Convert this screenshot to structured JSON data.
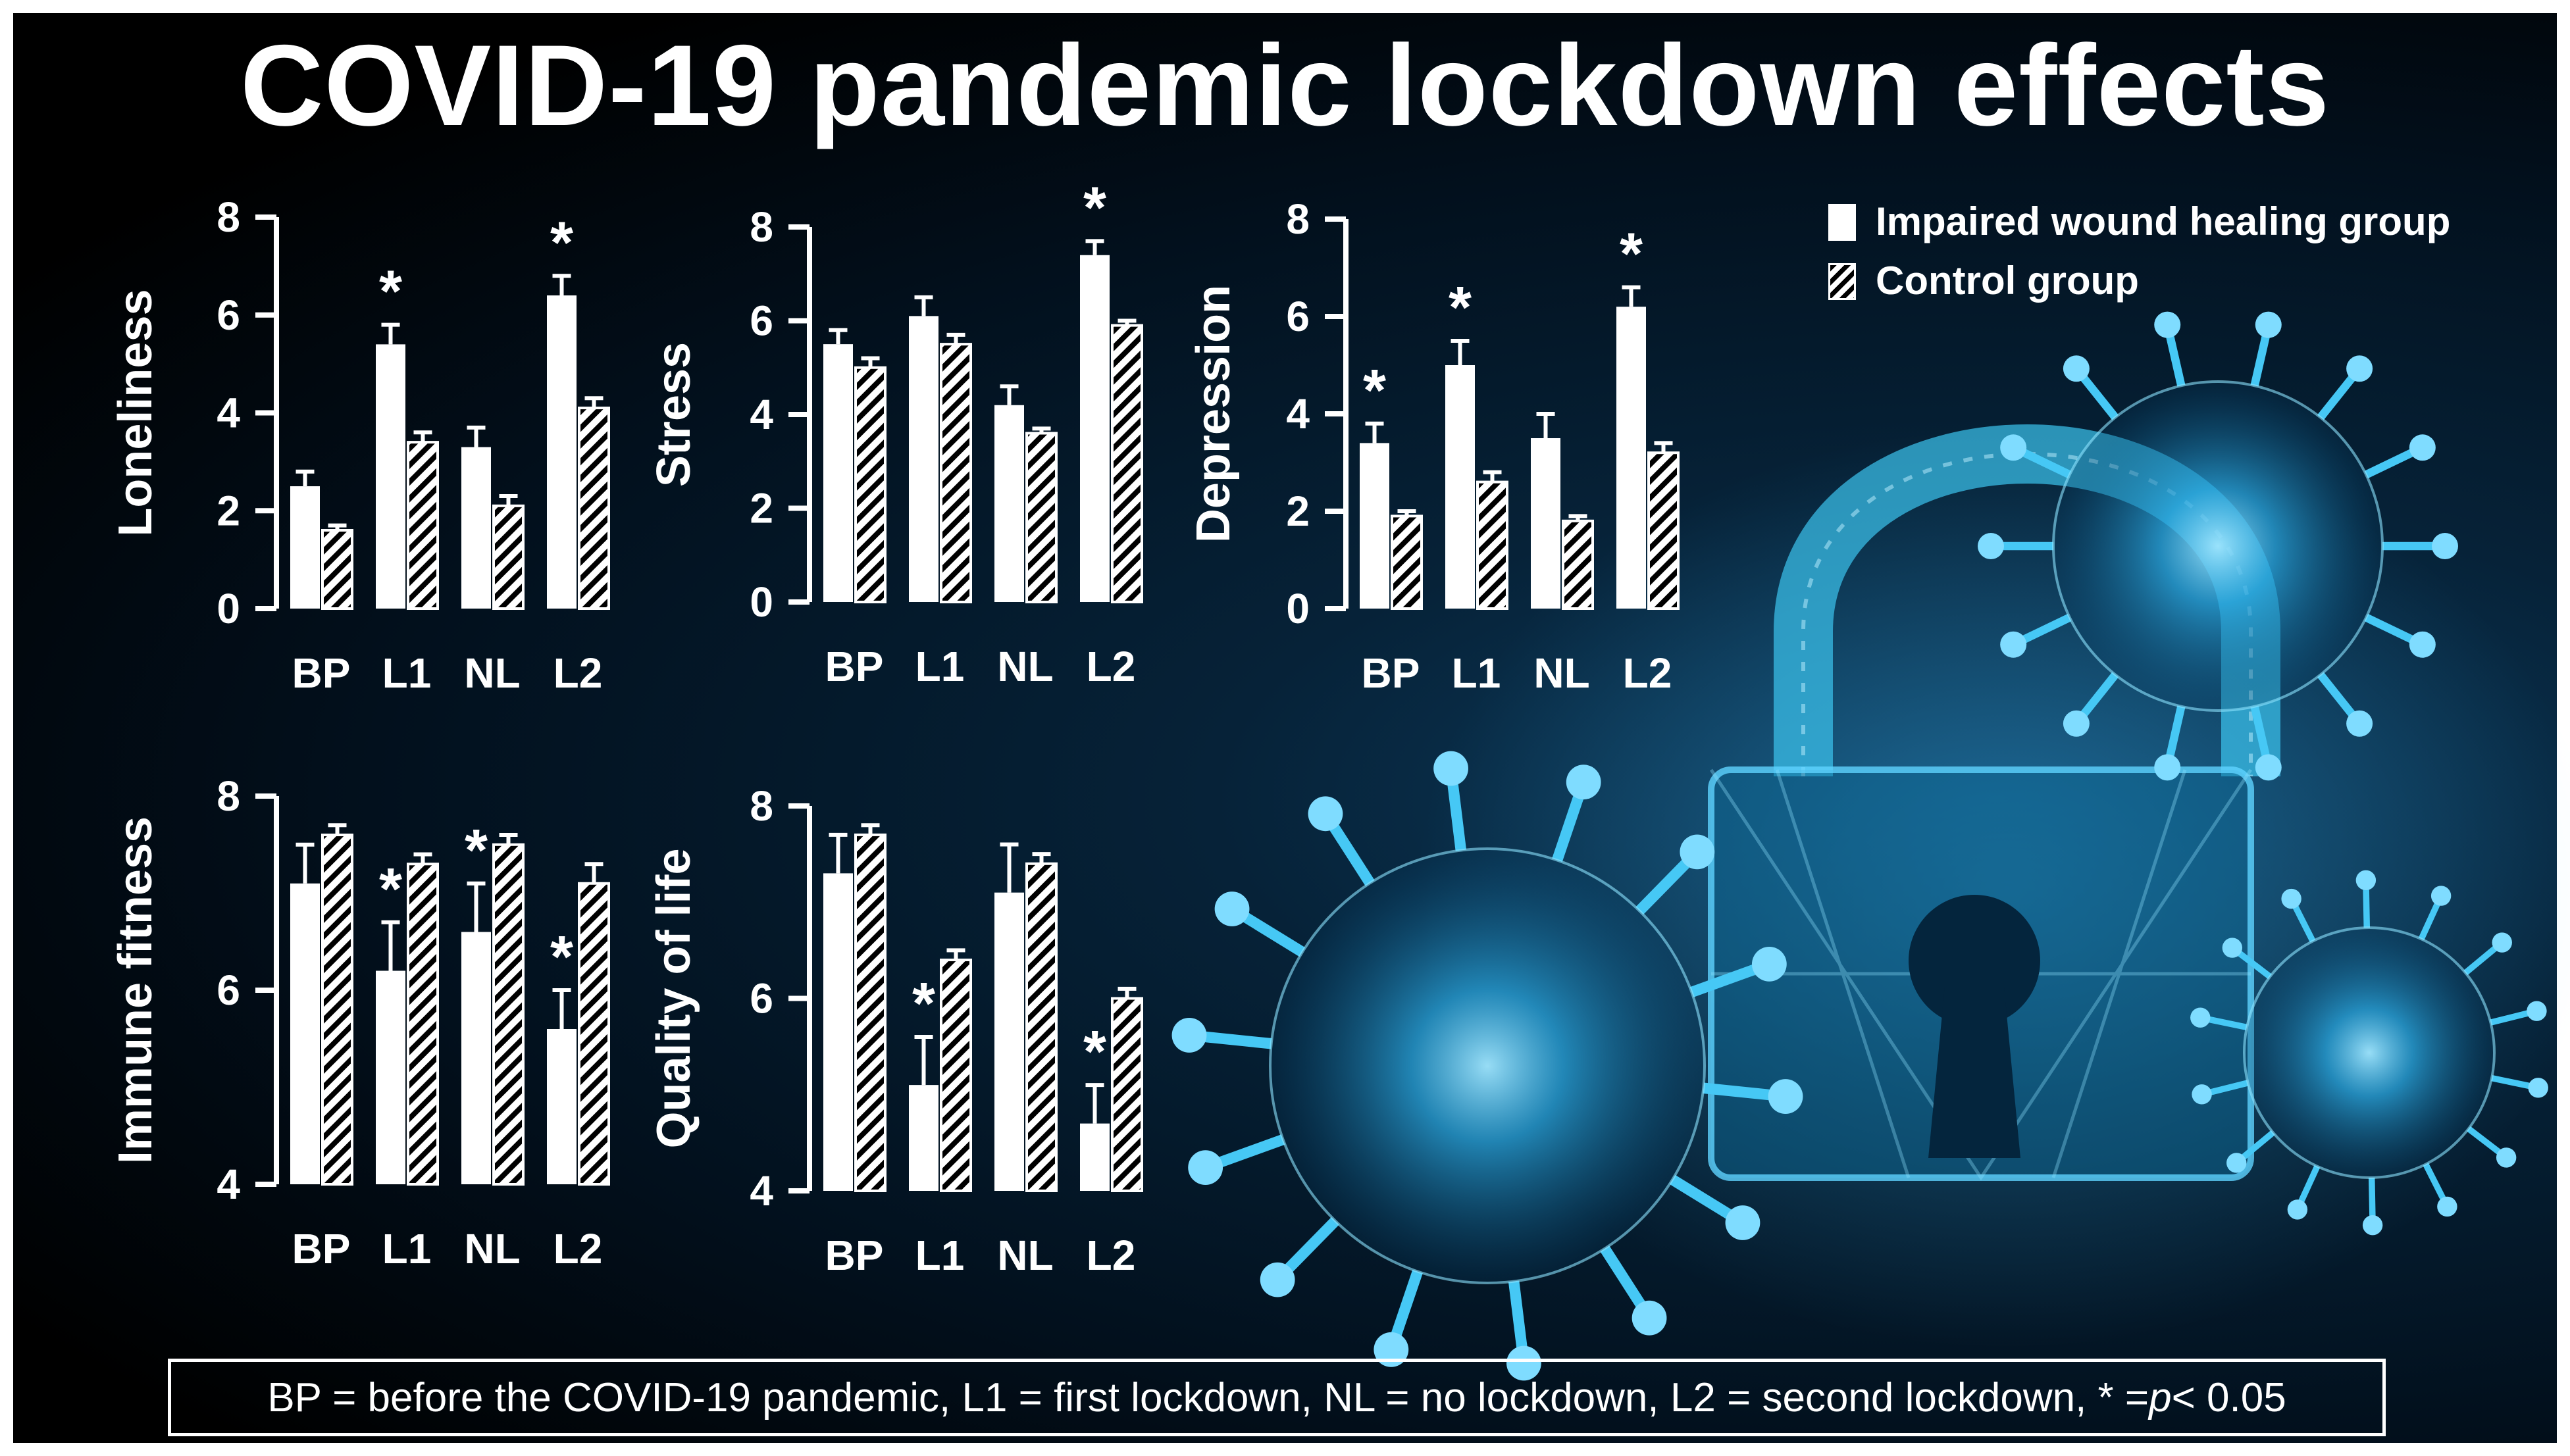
{
  "title": "COVID-19 pandemic lockdown effects",
  "legend": {
    "impaired": "Impaired wound healing group",
    "control": "Control group"
  },
  "footnote": {
    "before_p": "BP = before the COVID-19 pandemic, L1 = first lockdown, NL = no lockdown, L2 = second lockdown, * = ",
    "p": "p",
    "after_p": " < 0.05"
  },
  "colors": {
    "background": "#000000",
    "impaired_bar": "#ffffff",
    "control_bar_hatch": "#000000",
    "text": "#ffffff",
    "virus_glow": "#1fa8e0"
  },
  "chart_data": [
    {
      "type": "bar",
      "ylabel": "Loneliness",
      "categories": [
        "BP",
        "L1",
        "NL",
        "L2"
      ],
      "ylim": [
        0,
        8
      ],
      "yticks": [
        "0",
        "2",
        "4",
        "6",
        "8"
      ],
      "series": [
        {
          "name": "Impaired wound healing group",
          "values": [
            2.5,
            5.4,
            3.3,
            6.4
          ],
          "errors": [
            0.3,
            0.4,
            0.4,
            0.4
          ]
        },
        {
          "name": "Control group",
          "values": [
            1.6,
            3.4,
            2.1,
            4.1
          ],
          "errors": [
            0.1,
            0.2,
            0.2,
            0.2
          ]
        }
      ],
      "significance": [
        "",
        "*",
        "",
        "*"
      ]
    },
    {
      "type": "bar",
      "ylabel": "Stress",
      "categories": [
        "BP",
        "L1",
        "NL",
        "L2"
      ],
      "ylim": [
        0,
        8
      ],
      "yticks": [
        "0",
        "2",
        "4",
        "6",
        "8"
      ],
      "series": [
        {
          "name": "Impaired wound healing group",
          "values": [
            5.5,
            6.1,
            4.2,
            7.4
          ],
          "errors": [
            0.3,
            0.4,
            0.4,
            0.3
          ]
        },
        {
          "name": "Control group",
          "values": [
            5.0,
            5.5,
            3.6,
            5.9
          ],
          "errors": [
            0.2,
            0.2,
            0.1,
            0.1
          ]
        }
      ],
      "significance": [
        "",
        "",
        "",
        "*"
      ]
    },
    {
      "type": "bar",
      "ylabel": "Depression",
      "categories": [
        "BP",
        "L1",
        "NL",
        "L2"
      ],
      "ylim": [
        0,
        8
      ],
      "yticks": [
        "0",
        "2",
        "4",
        "6",
        "8"
      ],
      "series": [
        {
          "name": "Impaired wound healing group",
          "values": [
            3.4,
            5.0,
            3.5,
            6.2
          ],
          "errors": [
            0.4,
            0.5,
            0.5,
            0.4
          ]
        },
        {
          "name": "Control group",
          "values": [
            1.9,
            2.6,
            1.8,
            3.2
          ],
          "errors": [
            0.1,
            0.2,
            0.1,
            0.2
          ]
        }
      ],
      "significance": [
        "*",
        "*",
        "",
        "*"
      ]
    },
    {
      "type": "bar",
      "ylabel": "Immune fitness",
      "categories": [
        "BP",
        "L1",
        "NL",
        "L2"
      ],
      "ylim": [
        4,
        8
      ],
      "yticks": [
        "4",
        "6",
        "8"
      ],
      "series": [
        {
          "name": "Impaired wound healing group",
          "values": [
            7.1,
            6.2,
            6.6,
            5.6
          ],
          "errors": [
            0.4,
            0.5,
            0.5,
            0.4
          ]
        },
        {
          "name": "Control group",
          "values": [
            7.6,
            7.3,
            7.5,
            7.1
          ],
          "errors": [
            0.1,
            0.1,
            0.1,
            0.2
          ]
        }
      ],
      "significance": [
        "",
        "*",
        "*",
        "*"
      ]
    },
    {
      "type": "bar",
      "ylabel": "Quality of life",
      "categories": [
        "BP",
        "L1",
        "NL",
        "L2"
      ],
      "ylim": [
        4,
        8
      ],
      "yticks": [
        "4",
        "6",
        "8"
      ],
      "series": [
        {
          "name": "Impaired wound healing group",
          "values": [
            7.3,
            5.1,
            7.1,
            4.7
          ],
          "errors": [
            0.4,
            0.5,
            0.5,
            0.4
          ]
        },
        {
          "name": "Control group",
          "values": [
            7.7,
            6.4,
            7.4,
            6.0
          ],
          "errors": [
            0.1,
            0.1,
            0.1,
            0.1
          ]
        }
      ],
      "significance": [
        "",
        "*",
        "",
        "*"
      ]
    }
  ]
}
